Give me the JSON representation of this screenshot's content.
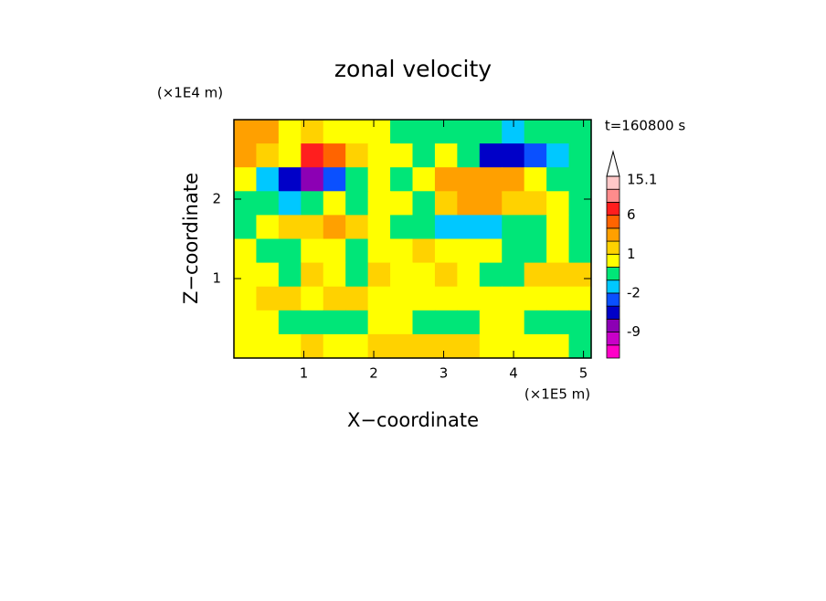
{
  "chart_data": {
    "type": "contourf",
    "title": "zonal velocity",
    "xlabel": "X−coordinate",
    "ylabel": "Z−coordinate",
    "xunit": "(×1E5 m)",
    "yunit": "(×1E4 m)",
    "annotation": "t=160800 s",
    "xlim": [
      0,
      5.11
    ],
    "ylim": [
      0,
      3
    ],
    "xticks": [
      1,
      2,
      3,
      4,
      5
    ],
    "yticks": [
      1,
      2
    ],
    "z": [
      [
        2,
        2,
        0.5,
        1.5,
        0.5,
        0.5,
        0.5,
        -0.5,
        -0.5,
        -0.5,
        -0.5,
        -0.5,
        -1.5,
        -0.5,
        -0.5,
        -0.5
      ],
      [
        3,
        1.5,
        0.5,
        6,
        5,
        1.5,
        0.5,
        0.5,
        -0.5,
        0.5,
        -0.5,
        -6,
        -5,
        -3,
        -1.5,
        -0.5
      ],
      [
        0.5,
        -1.5,
        -6,
        -8,
        -3,
        -0.5,
        0.5,
        -0.5,
        0.5,
        2,
        2.5,
        2.5,
        2,
        0.5,
        -0.5,
        -0.5
      ],
      [
        -0.5,
        -0.5,
        -1.5,
        -0.5,
        0.5,
        -0.5,
        0.5,
        0.5,
        -0.5,
        1,
        2.5,
        2.5,
        1.5,
        1,
        0.5,
        -0.5
      ],
      [
        -0.5,
        0.5,
        1,
        1,
        2,
        1,
        0.5,
        -0.5,
        -0.5,
        -1.5,
        -1.5,
        -1.5,
        -0.5,
        -0.5,
        0.5,
        -0.5
      ],
      [
        0.5,
        -0.5,
        -0.5,
        0.5,
        0.5,
        -0.5,
        0.5,
        0.5,
        1,
        0.5,
        0.5,
        0.5,
        -0.5,
        -0.5,
        0.5,
        -0.5
      ],
      [
        0.5,
        0.5,
        -0.5,
        1,
        0.5,
        -0.5,
        1,
        0.5,
        0.5,
        1,
        0.5,
        -0.5,
        -0.5,
        1,
        1.5,
        1
      ],
      [
        0.5,
        1,
        1,
        0.5,
        1,
        1,
        0.5,
        0.5,
        0.5,
        0.5,
        0.5,
        0.5,
        0.5,
        0.5,
        0.5,
        0.5
      ],
      [
        0.5,
        0.5,
        -0.5,
        -0.5,
        -0.5,
        -0.5,
        0.5,
        0.5,
        -0.5,
        -0.5,
        -0.5,
        0.5,
        0.5,
        -0.5,
        -0.5,
        -0.5
      ],
      [
        0.5,
        0.5,
        0.5,
        1,
        0.5,
        0.5,
        1,
        1,
        1.5,
        1,
        1,
        0.5,
        0.5,
        0.5,
        0.5,
        -0.5
      ]
    ],
    "levels": [
      -15,
      -12,
      -9,
      -6,
      -4,
      -2,
      -1,
      0,
      1,
      2,
      4,
      6,
      9,
      12,
      15.1
    ],
    "colors": [
      "#ff00c8",
      "#c800c8",
      "#8c00b4",
      "#0000c8",
      "#0a50ff",
      "#00c8ff",
      "#00e678",
      "#ffff00",
      "#ffd200",
      "#ffa000",
      "#ff6400",
      "#ff1e1e",
      "#ff8c8c",
      "#ffc8c8"
    ],
    "colorbar_labels": [
      -9,
      -2,
      1,
      6,
      15.1
    ]
  }
}
